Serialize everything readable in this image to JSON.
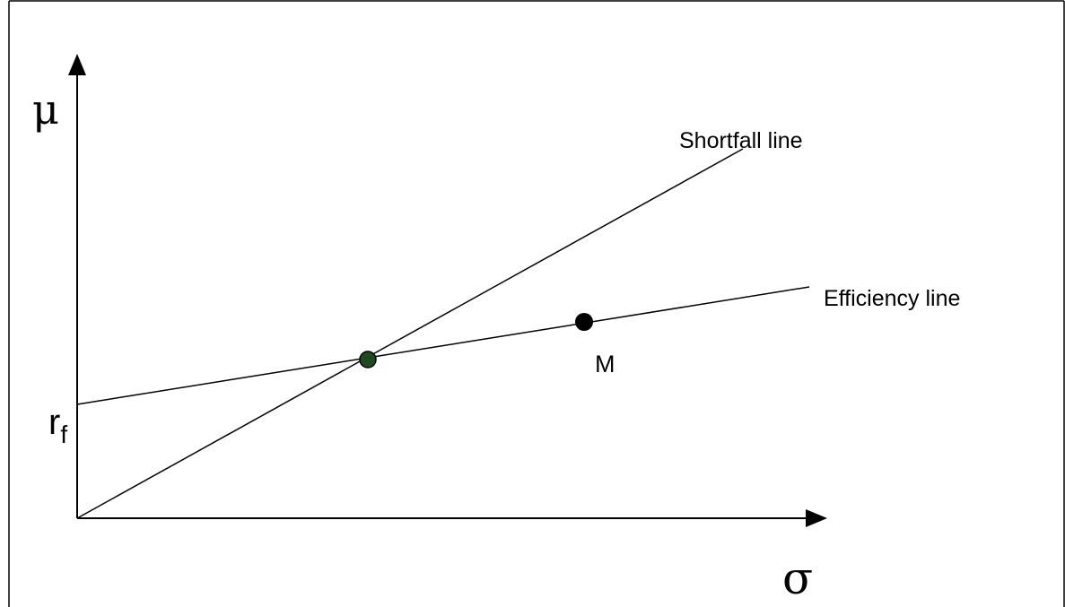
{
  "axes": {
    "y_symbol": "μ",
    "x_symbol": "σ",
    "rf_main": "r",
    "rf_sub": "f"
  },
  "lines": {
    "shortfall_label": "Shortfall line",
    "efficiency_label": "Efficiency line"
  },
  "points": {
    "market_label": "M"
  },
  "colors": {
    "stroke": "#000000",
    "market_point": "#000000",
    "intersection_point": "#1f4a1f",
    "background": "#ffffff"
  }
}
